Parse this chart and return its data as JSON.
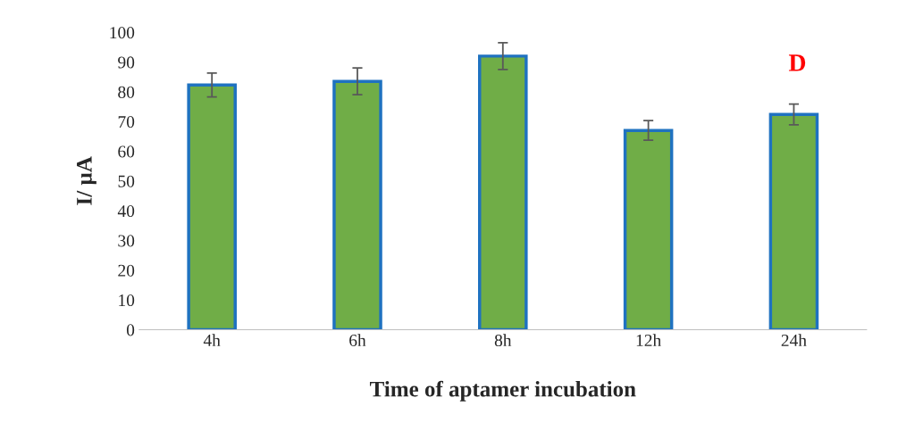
{
  "chart_data": {
    "type": "bar",
    "xlabel": "Time of aptamer incubation",
    "ylabel": "I/ µA",
    "categories": [
      "4h",
      "6h",
      "8h",
      "12h",
      "24h"
    ],
    "values": [
      82.3,
      83.5,
      92,
      67,
      72.4
    ],
    "errors": [
      4,
      4.5,
      4.5,
      3.3,
      3.5
    ],
    "color": "#70ad47",
    "ylim": [
      0,
      100
    ],
    "yticks": [
      0,
      10,
      20,
      30,
      40,
      50,
      60,
      70,
      80,
      90,
      100
    ],
    "grid": false,
    "legend": false,
    "annotations": [
      "D"
    ]
  }
}
